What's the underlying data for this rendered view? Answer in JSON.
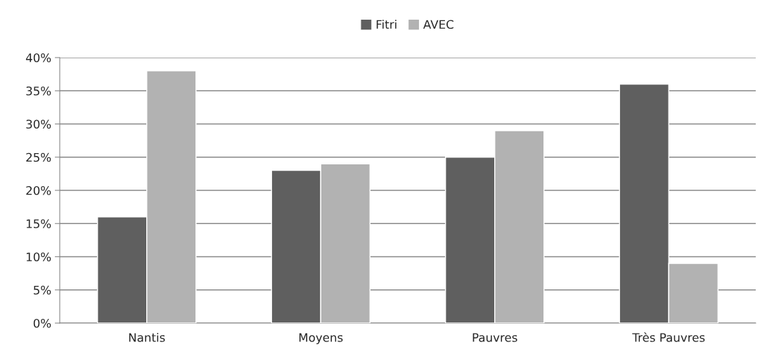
{
  "chart_data": {
    "type": "bar",
    "categories": [
      "Nantis",
      "Moyens",
      "Pauvres",
      "Très Pauvres"
    ],
    "series": [
      {
        "name": "Fitri",
        "color": "#5f5f5f",
        "values": [
          16,
          23,
          25,
          36
        ]
      },
      {
        "name": "AVEC",
        "color": "#b2b2b2",
        "values": [
          38,
          24,
          29,
          9
        ]
      }
    ],
    "ylim": [
      0,
      40
    ],
    "yticks": [
      {
        "value": 0,
        "label": "0%"
      },
      {
        "value": 5,
        "label": "5%"
      },
      {
        "value": 10,
        "label": "10%"
      },
      {
        "value": 15,
        "label": "15%"
      },
      {
        "value": 20,
        "label": "20%"
      },
      {
        "value": 25,
        "label": "25%"
      },
      {
        "value": 30,
        "label": "30%"
      },
      {
        "value": 35,
        "label": "35%"
      },
      {
        "value": 40,
        "label": "40%"
      }
    ],
    "grid": "y",
    "legend": "top"
  }
}
